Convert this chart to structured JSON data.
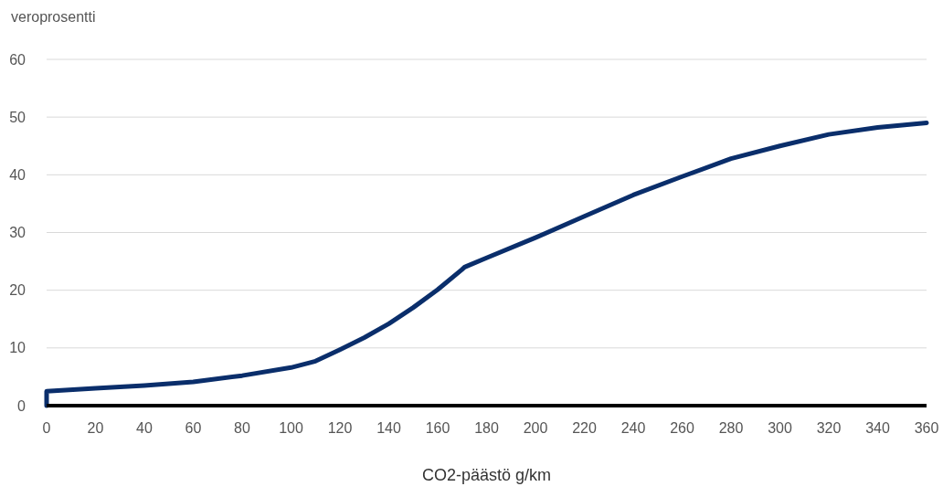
{
  "chart_data": {
    "type": "line",
    "xlabel": "CO2-päästö g/km",
    "ylabel": "veroprosentti",
    "xlim": [
      0,
      360
    ],
    "xticks": [
      0,
      20,
      40,
      60,
      80,
      100,
      120,
      140,
      160,
      180,
      200,
      220,
      240,
      260,
      280,
      300,
      320,
      340,
      360
    ],
    "ylim": [
      0,
      60
    ],
    "yticks": [
      0,
      10,
      20,
      30,
      40,
      50,
      60
    ],
    "grid": "y",
    "marker": "none",
    "line_style": "solid",
    "series": [
      {
        "color": "#0a2e6b",
        "x": [
          0,
          0,
          20,
          40,
          60,
          80,
          100,
          110,
          120,
          130,
          140,
          150,
          160,
          170,
          171,
          180,
          200,
          220,
          240,
          260,
          280,
          300,
          320,
          340,
          360
        ],
        "values": [
          0,
          2.5,
          3.0,
          3.5,
          4.1,
          5.2,
          6.6,
          7.7,
          9.7,
          11.8,
          14.2,
          17.0,
          20.1,
          23.6,
          24,
          25.6,
          29.1,
          32.8,
          36.5,
          39.7,
          42.8,
          45.0,
          47.0,
          48.2,
          49
        ]
      }
    ]
  }
}
